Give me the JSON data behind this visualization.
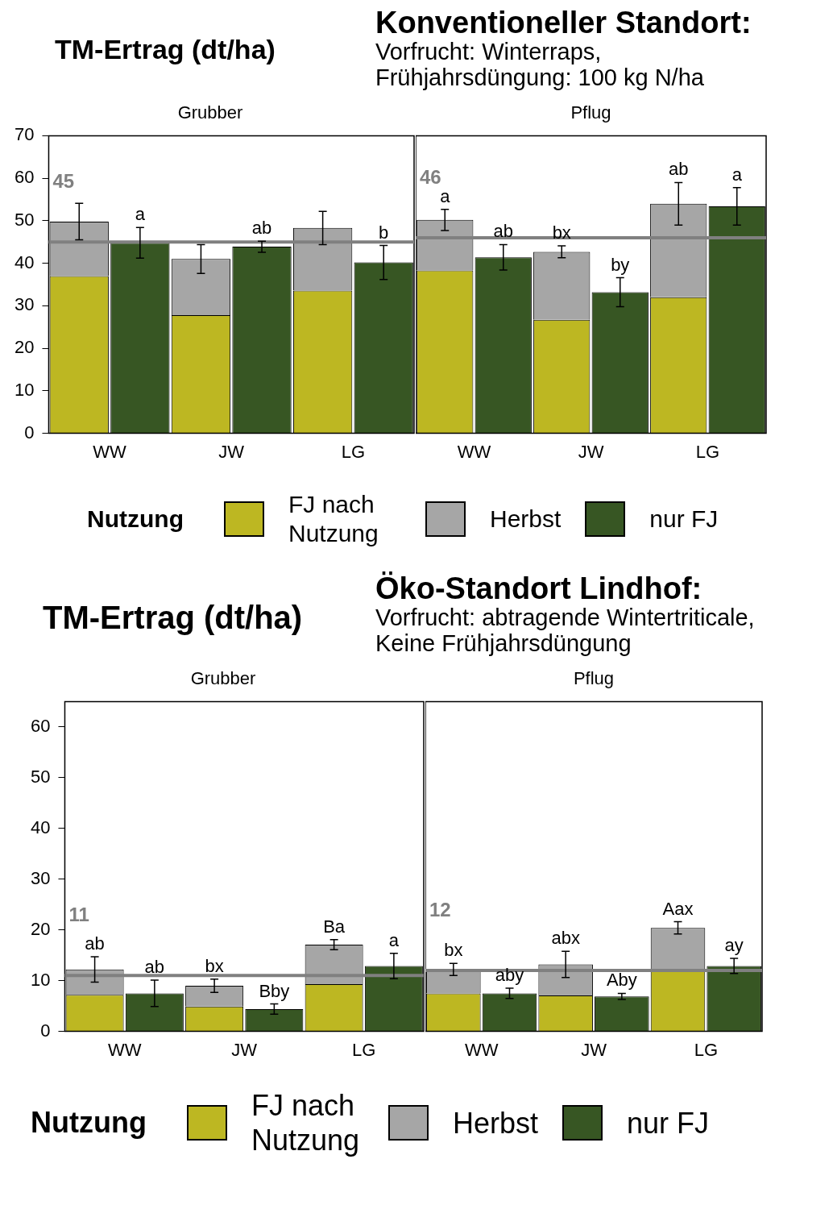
{
  "chart_data": [
    {
      "type": "bar",
      "title": "Grubber",
      "ylabel": "TM-Ertrag (dt/ha)",
      "legend": "bottom",
      "legend_title": "Nutzung",
      "stacked": true,
      "categories": [
        "WW",
        null,
        "JW",
        null,
        "LG",
        null
      ],
      "ylim": [
        0,
        70
      ],
      "yticks": [
        0,
        10,
        20,
        30,
        40,
        50,
        60,
        70
      ],
      "series": [
        {
          "name": "FJ nach Nutzung",
          "color": "#bdb722",
          "values": [
            37.0,
            null,
            27.8,
            null,
            33.6,
            null
          ]
        },
        {
          "name": "Herbst",
          "color": "#a6a6a6",
          "values": [
            12.8,
            null,
            13.2,
            null,
            14.7,
            null
          ],
          "errors": [
            4.3,
            null,
            3.4,
            null,
            3.9,
            null
          ]
        },
        {
          "name": "nur FJ",
          "color": "#375623",
          "values": [
            null,
            44.8,
            null,
            43.9,
            null,
            40.2
          ],
          "errors": [
            null,
            3.6,
            null,
            1.3,
            null,
            4.0
          ],
          "value_labels": [
            null,
            "a",
            null,
            "ab",
            null,
            "b"
          ]
        }
      ],
      "ref_lines": [
        {
          "axis": "y",
          "value": 45,
          "label": "45",
          "color": "#808080"
        }
      ],
      "annotations": [
        "Konventioneller Standort:",
        "Vorfrucht: Winterraps,",
        "Frühjahrsdüngung:  100 kg N/ha"
      ]
    },
    {
      "type": "bar",
      "title": "Pflug",
      "stacked": true,
      "tick_labels": "x",
      "categories": [
        "WW",
        null,
        "JW",
        null,
        "LG",
        null
      ],
      "ylim": [
        0,
        70
      ],
      "yticks": [
        0,
        10,
        20,
        30,
        40,
        50,
        60,
        70
      ],
      "series": [
        {
          "color": "#bdb722",
          "values": [
            38.3,
            null,
            26.7,
            null,
            32.0,
            null
          ]
        },
        {
          "color": "#a6a6a6",
          "values": [
            11.9,
            null,
            16.0,
            null,
            22.0,
            null
          ],
          "errors": [
            2.5,
            null,
            1.4,
            null,
            5.0,
            null
          ],
          "value_labels": [
            "a",
            null,
            "bx",
            null,
            "ab",
            null
          ]
        },
        {
          "color": "#375623",
          "values": [
            null,
            41.4,
            null,
            33.2,
            null,
            53.4
          ],
          "errors": [
            null,
            3.0,
            null,
            3.4,
            null,
            4.4
          ],
          "value_labels": [
            null,
            "ab",
            null,
            "by",
            null,
            "a"
          ]
        }
      ],
      "ref_lines": [
        {
          "axis": "y",
          "value": 46,
          "label": "46",
          "color": "#808080"
        }
      ]
    },
    {
      "type": "bar",
      "title": "Grubber",
      "ylabel": "TM-Ertrag (dt/ha)",
      "legend": "bottom",
      "legend_title": "Nutzung",
      "stacked": true,
      "categories": [
        "WW",
        null,
        "JW",
        null,
        "LG",
        null
      ],
      "ylim": [
        0,
        65
      ],
      "yticks": [
        0,
        10,
        20,
        30,
        40,
        50,
        60
      ],
      "series": [
        {
          "name": "FJ nach Nutzung",
          "color": "#bdb722",
          "values": [
            7.2,
            null,
            4.9,
            null,
            9.3,
            null
          ]
        },
        {
          "name": "Herbst",
          "color": "#a6a6a6",
          "values": [
            5.0,
            null,
            4.1,
            null,
            7.8,
            null
          ],
          "errors": [
            2.5,
            null,
            1.3,
            null,
            1.0,
            null
          ],
          "value_labels": [
            "ab",
            null,
            "bx",
            null,
            "Ba",
            null
          ]
        },
        {
          "name": "nur FJ",
          "color": "#375623",
          "values": [
            null,
            7.5,
            null,
            4.4,
            null,
            12.9
          ],
          "errors": [
            null,
            2.6,
            null,
            1.0,
            null,
            2.5
          ],
          "value_labels": [
            null,
            "ab",
            null,
            "Bby",
            null,
            "a"
          ]
        }
      ],
      "ref_lines": [
        {
          "axis": "y",
          "value": 11,
          "label": "11",
          "color": "#808080"
        }
      ],
      "annotations": [
        "Öko-Standort Lindhof:",
        "Vorfrucht: abtragende Wintertriticale,",
        "Keine Frühjahrsdüngung"
      ]
    },
    {
      "type": "bar",
      "title": "Pflug",
      "stacked": true,
      "tick_labels": "x",
      "categories": [
        "WW",
        null,
        "JW",
        null,
        "LG",
        null
      ],
      "ylim": [
        0,
        65
      ],
      "yticks": [
        0,
        10,
        20,
        30,
        40,
        50,
        60
      ],
      "series": [
        {
          "color": "#bdb722",
          "values": [
            7.5,
            null,
            7.1,
            null,
            12.2,
            null
          ]
        },
        {
          "color": "#a6a6a6",
          "values": [
            4.7,
            null,
            6.1,
            null,
            8.2,
            null
          ],
          "errors": [
            1.2,
            null,
            2.6,
            null,
            1.2,
            null
          ],
          "value_labels": [
            "bx",
            null,
            "abx",
            null,
            "Aax",
            null
          ]
        },
        {
          "color": "#375623",
          "values": [
            null,
            7.5,
            null,
            6.9,
            null,
            12.9
          ],
          "errors": [
            null,
            1.0,
            null,
            0.6,
            null,
            1.5
          ],
          "value_labels": [
            null,
            "aby",
            null,
            "Aby",
            null,
            "ay"
          ]
        }
      ],
      "ref_lines": [
        {
          "axis": "y",
          "value": 12,
          "label": "12",
          "color": "#808080"
        }
      ]
    }
  ]
}
